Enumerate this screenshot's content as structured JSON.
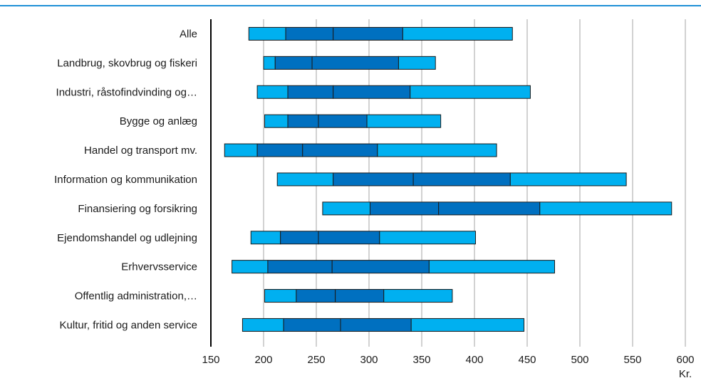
{
  "chart_data": {
    "type": "bar",
    "orientation": "horizontal",
    "categories": [
      "Alle",
      "Landbrug, skovbrug og fiskeri",
      "Industri, råstofindvinding og…",
      "Bygge og anlæg",
      "Handel og transport mv.",
      "Information og kommunikation",
      "Finansiering og forsikring",
      "Ejendomshandel og udlejning",
      "Erhvervsservice",
      "Offentlig administration,…",
      "Kultur, fritid og anden service"
    ],
    "segments": [
      [
        186,
        221,
        266,
        332,
        436
      ],
      [
        200,
        211,
        246,
        328,
        363
      ],
      [
        194,
        223,
        266,
        339,
        453
      ],
      [
        201,
        223,
        252,
        298,
        368
      ],
      [
        163,
        194,
        237,
        308,
        421
      ],
      [
        213,
        266,
        342,
        434,
        544
      ],
      [
        256,
        301,
        366,
        462,
        587
      ],
      [
        188,
        216,
        252,
        310,
        401
      ],
      [
        170,
        204,
        265,
        357,
        476
      ],
      [
        201,
        231,
        268,
        314,
        379
      ],
      [
        180,
        219,
        273,
        340,
        447
      ]
    ],
    "segment_colors": [
      "#00b0f0",
      "#0070c0",
      "#0070c0",
      "#00b0f0"
    ],
    "xlim": [
      150,
      600
    ],
    "xticks": [
      "150",
      "200",
      "250",
      "300",
      "350",
      "400",
      "450",
      "500",
      "550",
      "600"
    ],
    "xticks_values": [
      150,
      200,
      250,
      300,
      350,
      400,
      450,
      500,
      550,
      600
    ],
    "xunit": "Kr.",
    "grid": true,
    "title": "",
    "xlabel": "",
    "ylabel": ""
  }
}
